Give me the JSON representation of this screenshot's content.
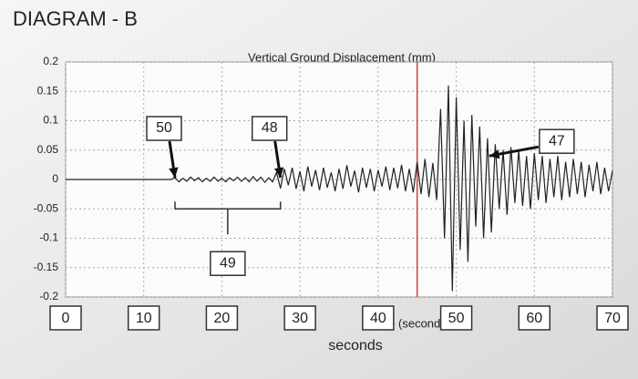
{
  "chart_data": {
    "type": "line",
    "title": "DIAGRAM - B",
    "subtitle": "Vertical Ground Displacement (mm)",
    "xlabel": "Time (seconds)",
    "handwritten_xlabel": "seconds",
    "xlim": [
      0,
      70
    ],
    "xticks": [
      0,
      10,
      20,
      30,
      40,
      50,
      60,
      70
    ],
    "ylim": [
      -0.2,
      0.2
    ],
    "yticks": [
      0.2,
      0.15,
      0.1,
      0.05,
      0,
      -0.05,
      -0.1,
      -0.15,
      -0.2
    ],
    "grid": true,
    "marker_x": 45,
    "marker_color": "#d04040",
    "series": [
      {
        "color": "#222222",
        "x": [
          0,
          0.5,
          1,
          1.5,
          2,
          2.5,
          3,
          3.5,
          4,
          4.5,
          5,
          5.5,
          6,
          6.5,
          7,
          7.5,
          8,
          8.5,
          9,
          9.5,
          10,
          10.5,
          11,
          11.5,
          12,
          12.5,
          13,
          13.5,
          14,
          14.5,
          15,
          15.5,
          16,
          16.5,
          17,
          17.5,
          18,
          18.5,
          19,
          19.5,
          20,
          20.5,
          21,
          21.5,
          22,
          22.5,
          23,
          23.5,
          24,
          24.5,
          25,
          25.5,
          26,
          26.5,
          27,
          27.5,
          28,
          28.5,
          29,
          29.5,
          30,
          30.5,
          31,
          31.5,
          32,
          32.5,
          33,
          33.5,
          34,
          34.5,
          35,
          35.5,
          36,
          36.5,
          37,
          37.5,
          38,
          38.5,
          39,
          39.5,
          40,
          40.5,
          41,
          41.5,
          42,
          42.5,
          43,
          43.5,
          44,
          44.5,
          45,
          45.5,
          46,
          46.5,
          47,
          47.5,
          48,
          48.5,
          49,
          49.5,
          50,
          50.5,
          51,
          51.5,
          52,
          52.5,
          53,
          53.5,
          54,
          54.5,
          55,
          55.5,
          56,
          56.5,
          57,
          57.5,
          58,
          58.5,
          59,
          59.5,
          60,
          60.5,
          61,
          61.5,
          62,
          62.5,
          63,
          63.5,
          64,
          64.5,
          65,
          65.5,
          66,
          66.5,
          67,
          67.5,
          68,
          68.5,
          69,
          69.5,
          70
        ],
        "values": [
          0,
          0,
          0,
          0,
          0,
          0,
          0,
          0,
          0,
          0,
          0,
          0,
          0,
          0,
          0,
          0,
          0,
          0,
          0,
          0,
          0,
          0,
          0,
          0,
          0,
          0,
          0,
          0,
          0.003,
          -0.004,
          0.002,
          -0.003,
          0.004,
          -0.002,
          0.003,
          -0.004,
          0.002,
          -0.003,
          0.004,
          -0.003,
          0.002,
          -0.004,
          0.003,
          -0.002,
          0.004,
          -0.003,
          0.003,
          -0.004,
          0.005,
          -0.003,
          0.004,
          -0.005,
          0.003,
          -0.004,
          0.012,
          -0.015,
          0.018,
          -0.01,
          0.02,
          -0.016,
          0.014,
          -0.02,
          0.022,
          -0.012,
          0.016,
          -0.018,
          0.02,
          -0.014,
          0.012,
          -0.02,
          0.018,
          -0.016,
          0.024,
          -0.012,
          0.015,
          -0.022,
          0.02,
          -0.014,
          0.018,
          -0.02,
          0.016,
          -0.012,
          0.022,
          -0.018,
          0.02,
          -0.015,
          0.025,
          -0.02,
          0.018,
          -0.022,
          0.03,
          -0.025,
          0.035,
          -0.03,
          0.028,
          -0.035,
          0.12,
          -0.1,
          0.16,
          -0.19,
          0.14,
          -0.12,
          0.1,
          -0.14,
          0.11,
          -0.08,
          0.09,
          -0.1,
          0.07,
          -0.09,
          0.06,
          -0.05,
          0.05,
          -0.06,
          0.055,
          -0.04,
          0.05,
          -0.045,
          0.04,
          -0.05,
          0.045,
          -0.035,
          0.04,
          -0.04,
          0.035,
          -0.03,
          0.04,
          -0.035,
          0.03,
          -0.03,
          0.035,
          -0.025,
          0.03,
          -0.03,
          0.025,
          -0.02,
          0.03,
          -0.025,
          0.02,
          -0.02,
          0.015
        ]
      }
    ],
    "annotations": [
      {
        "text": "50",
        "x": 14,
        "y": 0
      },
      {
        "text": "48",
        "x": 27.5,
        "y": 0
      },
      {
        "text": "49",
        "x_start": 14,
        "x_end": 27.5,
        "y": -0.05
      },
      {
        "text": "47",
        "x": 54,
        "y": 0.04
      }
    ]
  }
}
